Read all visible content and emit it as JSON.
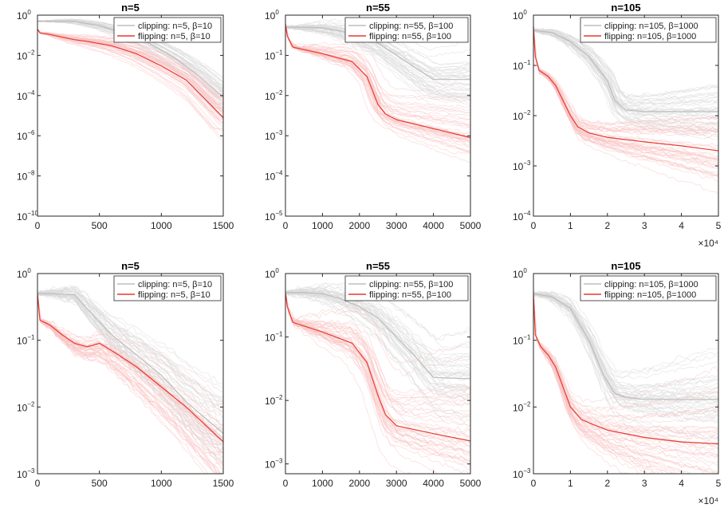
{
  "figure": {
    "colors": {
      "clipping": "#bdbdbd",
      "flipping": "#e8392f",
      "clipping_light": "#d9d9d9",
      "flipping_light": "#f9c2c2",
      "axis": "#262626"
    },
    "log_ytick_base": "10"
  },
  "chart_data": [
    {
      "type": "line",
      "title": "n=5",
      "xlim": [
        0,
        1500
      ],
      "xticks": [
        0,
        500,
        1000,
        1500
      ],
      "xtick_labels": [
        "0",
        "500",
        "1000",
        "1500"
      ],
      "xmultiplier": "",
      "yscale": "log",
      "yticks_exp": [
        -10,
        -8,
        -6,
        -4,
        -2,
        0
      ],
      "ylim": [
        1e-10,
        1
      ],
      "legend": [
        "clipping: n=5, β=10",
        "flipping: n=5, β=10"
      ],
      "legend_loc": "top-right",
      "series": [
        {
          "name": "clipping: n=5, β=10",
          "x": [
            0,
            100,
            250,
            300,
            500,
            700,
            900,
            1100,
            1300,
            1500
          ],
          "y": [
            0.5,
            0.5,
            0.5,
            0.48,
            0.3,
            0.12,
            0.04,
            0.008,
            0.001,
            8e-05
          ]
        },
        {
          "name": "flipping: n=5, β=10",
          "x": [
            0,
            20,
            100,
            200,
            300,
            400,
            600,
            800,
            1000,
            1200,
            1500
          ],
          "y": [
            0.2,
            0.13,
            0.11,
            0.08,
            0.06,
            0.05,
            0.03,
            0.012,
            0.003,
            0.0006,
            8e-06
          ]
        }
      ]
    },
    {
      "type": "line",
      "title": "n=55",
      "xlim": [
        0,
        5000
      ],
      "xticks": [
        0,
        1000,
        2000,
        3000,
        4000,
        5000
      ],
      "xtick_labels": [
        "0",
        "1000",
        "2000",
        "3000",
        "4000",
        "5000"
      ],
      "xmultiplier": "",
      "yscale": "log",
      "yticks_exp": [
        -5,
        -4,
        -3,
        -2,
        -1,
        0
      ],
      "ylim": [
        1e-05,
        1
      ],
      "legend": [
        "clipping: n=55, β=100",
        "flipping: n=55, β=100"
      ],
      "legend_loc": "top-right",
      "series": [
        {
          "name": "clipping: n=55, β=100",
          "x": [
            0,
            500,
            1000,
            1500,
            2000,
            2500,
            3000,
            3500,
            4000,
            5000
          ],
          "y": [
            0.5,
            0.5,
            0.48,
            0.4,
            0.3,
            0.2,
            0.1,
            0.05,
            0.025,
            0.025
          ]
        },
        {
          "name": "flipping: n=55, β=100",
          "x": [
            0,
            50,
            200,
            1000,
            1800,
            2200,
            2500,
            2700,
            3000,
            4000,
            5000
          ],
          "y": [
            0.6,
            0.3,
            0.16,
            0.11,
            0.07,
            0.03,
            0.006,
            0.0035,
            0.0025,
            0.0015,
            0.0009
          ]
        }
      ]
    },
    {
      "type": "line",
      "title": "n=105",
      "xlim": [
        0,
        5
      ],
      "xticks": [
        0,
        1,
        2,
        3,
        4,
        5
      ],
      "xtick_labels": [
        "0",
        "1",
        "2",
        "3",
        "4",
        "5"
      ],
      "xmultiplier": "×10⁴",
      "yscale": "log",
      "yticks_exp": [
        -4,
        -3,
        -2,
        -1,
        0
      ],
      "ylim": [
        0.0001,
        1
      ],
      "legend": [
        "clipping: n=105, β=1000",
        "flipping: n=105, β=1000"
      ],
      "legend_loc": "top-right",
      "series": [
        {
          "name": "clipping: n=105, β=1000",
          "x": [
            0,
            0.5,
            1,
            1.5,
            2,
            2.2,
            2.5,
            3,
            4,
            5
          ],
          "y": [
            0.5,
            0.45,
            0.3,
            0.15,
            0.05,
            0.02,
            0.013,
            0.012,
            0.012,
            0.012
          ]
        },
        {
          "name": "flipping: n=105, β=1000",
          "x": [
            0,
            0.05,
            0.15,
            0.4,
            0.6,
            0.8,
            1,
            1.2,
            1.5,
            2,
            3,
            4,
            5
          ],
          "y": [
            0.6,
            0.15,
            0.08,
            0.06,
            0.04,
            0.02,
            0.01,
            0.006,
            0.0045,
            0.0037,
            0.003,
            0.0025,
            0.002
          ]
        }
      ]
    },
    {
      "type": "line",
      "title": "n=5",
      "xlim": [
        0,
        1500
      ],
      "xticks": [
        0,
        500,
        1000,
        1500
      ],
      "xtick_labels": [
        "0",
        "500",
        "1000",
        "1500"
      ],
      "xmultiplier": "",
      "yscale": "log",
      "yticks_exp": [
        -3,
        -2,
        -1,
        0
      ],
      "ylim": [
        0.001,
        1
      ],
      "legend": [
        "clipping: n=5, β=10",
        "flipping: n=5, β=10"
      ],
      "legend_loc": "top-right",
      "series": [
        {
          "name": "clipping: n=5, β=10",
          "x": [
            0,
            100,
            300,
            400,
            600,
            800,
            1000,
            1200,
            1500
          ],
          "y": [
            0.5,
            0.5,
            0.48,
            0.3,
            0.12,
            0.06,
            0.03,
            0.012,
            0.004
          ]
        },
        {
          "name": "flipping: n=5, β=10",
          "x": [
            0,
            20,
            100,
            200,
            300,
            400,
            500,
            600,
            800,
            1000,
            1200,
            1500
          ],
          "y": [
            0.5,
            0.2,
            0.17,
            0.12,
            0.09,
            0.08,
            0.09,
            0.07,
            0.04,
            0.02,
            0.01,
            0.003
          ]
        }
      ]
    },
    {
      "type": "line",
      "title": "n=55",
      "xlim": [
        0,
        5000
      ],
      "xticks": [
        0,
        1000,
        2000,
        3000,
        4000,
        5000
      ],
      "xtick_labels": [
        "0",
        "1000",
        "2000",
        "3000",
        "4000",
        "5000"
      ],
      "xmultiplier": "",
      "yscale": "log",
      "yticks_exp": [
        -3,
        -2,
        -1,
        0
      ],
      "ylim": [
        0.0007,
        1
      ],
      "legend": [
        "clipping: n=55, β=100",
        "flipping: n=55, β=100"
      ],
      "legend_loc": "top-right",
      "series": [
        {
          "name": "clipping: n=55, β=100",
          "x": [
            0,
            500,
            1000,
            1500,
            2000,
            2500,
            3000,
            3500,
            4000,
            5000
          ],
          "y": [
            0.5,
            0.5,
            0.48,
            0.4,
            0.3,
            0.2,
            0.1,
            0.05,
            0.023,
            0.022
          ]
        },
        {
          "name": "flipping: n=55, β=100",
          "x": [
            0,
            50,
            200,
            1000,
            1800,
            2200,
            2500,
            2700,
            3000,
            4000,
            5000
          ],
          "y": [
            0.5,
            0.3,
            0.17,
            0.12,
            0.08,
            0.04,
            0.012,
            0.006,
            0.004,
            0.003,
            0.0023
          ]
        }
      ]
    },
    {
      "type": "line",
      "title": "n=105",
      "xlim": [
        0,
        5
      ],
      "xticks": [
        0,
        1,
        2,
        3,
        4,
        5
      ],
      "xtick_labels": [
        "0",
        "1",
        "2",
        "3",
        "4",
        "5"
      ],
      "xmultiplier": "×10⁴",
      "yscale": "log",
      "yticks_exp": [
        -3,
        -2,
        -1,
        0
      ],
      "ylim": [
        0.001,
        1
      ],
      "legend": [
        "clipping: n=105, β=1000",
        "flipping: n=105, β=1000"
      ],
      "legend_loc": "top-right",
      "series": [
        {
          "name": "clipping: n=105, β=1000",
          "x": [
            0,
            0.5,
            1,
            1.5,
            1.9,
            2.2,
            2.5,
            3,
            4,
            5
          ],
          "y": [
            0.5,
            0.45,
            0.3,
            0.1,
            0.03,
            0.016,
            0.014,
            0.013,
            0.013,
            0.013
          ]
        },
        {
          "name": "flipping: n=105, β=1000",
          "x": [
            0,
            0.05,
            0.2,
            0.4,
            0.6,
            0.8,
            1,
            1.3,
            1.6,
            2,
            3,
            4,
            5
          ],
          "y": [
            0.5,
            0.12,
            0.08,
            0.06,
            0.04,
            0.02,
            0.01,
            0.0065,
            0.0055,
            0.0045,
            0.0035,
            0.003,
            0.0028
          ]
        }
      ]
    }
  ]
}
